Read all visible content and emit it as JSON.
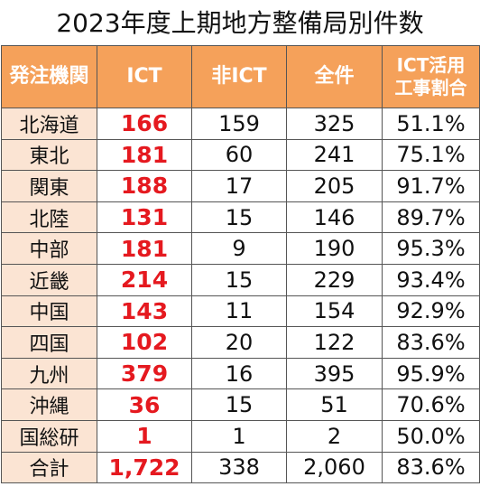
{
  "title": "2023年度上期地方整備局別件数",
  "headers": {
    "office": "発注機関",
    "ict": "ICT",
    "non_ict": "非ICT",
    "total": "全件",
    "rate_line1": "ICT活用",
    "rate_line2": "工事割合"
  },
  "rows": [
    {
      "region": "北海道",
      "ict": "166",
      "non_ict": "159",
      "total": "325",
      "rate": "51.1%"
    },
    {
      "region": "東北",
      "ict": "181",
      "non_ict": "60",
      "total": "241",
      "rate": "75.1%"
    },
    {
      "region": "関東",
      "ict": "188",
      "non_ict": "17",
      "total": "205",
      "rate": "91.7%"
    },
    {
      "region": "北陸",
      "ict": "131",
      "non_ict": "15",
      "total": "146",
      "rate": "89.7%"
    },
    {
      "region": "中部",
      "ict": "181",
      "non_ict": "9",
      "total": "190",
      "rate": "95.3%"
    },
    {
      "region": "近畿",
      "ict": "214",
      "non_ict": "15",
      "total": "229",
      "rate": "93.4%"
    },
    {
      "region": "中国",
      "ict": "143",
      "non_ict": "11",
      "total": "154",
      "rate": "92.9%"
    },
    {
      "region": "四国",
      "ict": "102",
      "non_ict": "20",
      "total": "122",
      "rate": "83.6%"
    },
    {
      "region": "九州",
      "ict": "379",
      "non_ict": "16",
      "total": "395",
      "rate": "95.9%"
    },
    {
      "region": "沖縄",
      "ict": "36",
      "non_ict": "15",
      "total": "51",
      "rate": "70.6%"
    },
    {
      "region": "国総研",
      "ict": "1",
      "non_ict": "1",
      "total": "2",
      "rate": "50.0%"
    },
    {
      "region": "合計",
      "ict": "1,722",
      "non_ict": "338",
      "total": "2,060",
      "rate": "83.6%"
    }
  ],
  "colors": {
    "header_bg": "#f5a15a",
    "region_bg": "#fbe4d3",
    "ict_text": "#e5191f"
  }
}
